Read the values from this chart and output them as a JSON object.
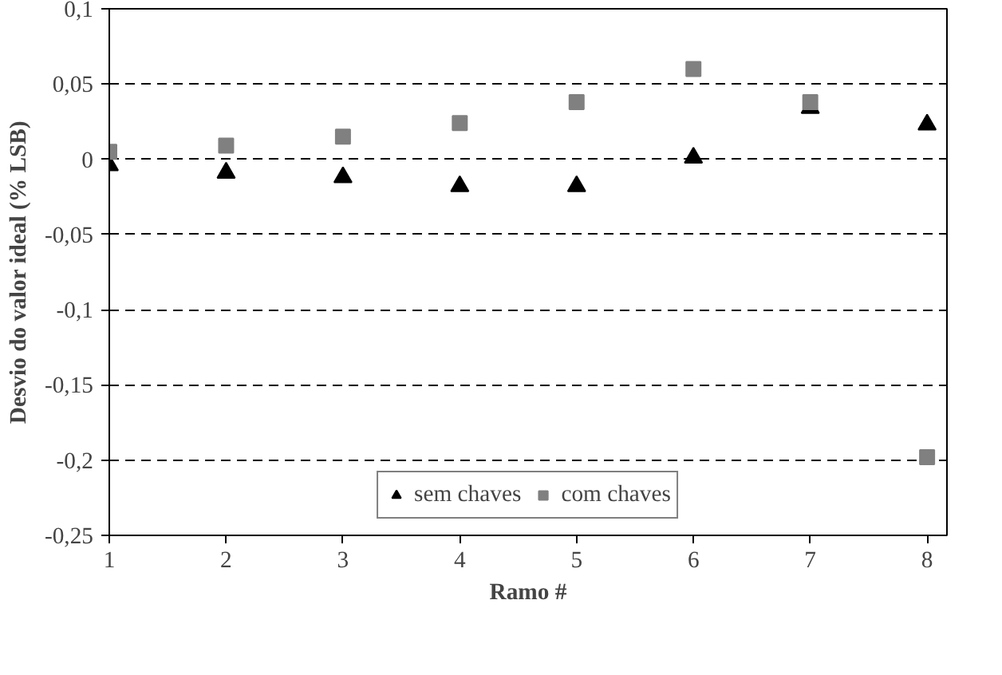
{
  "chart_data": {
    "type": "scatter",
    "xlabel": "Ramo #",
    "ylabel": "Desvio do valor ideal (% LSB)",
    "x": [
      1,
      2,
      3,
      4,
      5,
      6,
      7,
      8
    ],
    "series": [
      {
        "name": "sem chaves",
        "color": "#000000",
        "marker": "triangle",
        "values": [
          -0.004,
          -0.009,
          -0.012,
          -0.018,
          -0.018,
          0.001,
          0.034,
          0.023
        ]
      },
      {
        "name": "com chaves",
        "color": "#808080",
        "marker": "square",
        "values": [
          0.005,
          0.009,
          0.015,
          0.024,
          0.038,
          0.06,
          0.038,
          -0.198
        ]
      }
    ],
    "xlim": [
      1,
      8.17
    ],
    "xticks": [
      1,
      2,
      3,
      4,
      5,
      6,
      7,
      8
    ],
    "ylim": [
      -0.25,
      0.1
    ],
    "yticks": [
      {
        "value": -0.25,
        "label": "-0,25"
      },
      {
        "value": -0.2,
        "label": "-0,2"
      },
      {
        "value": -0.15,
        "label": "-0,15"
      },
      {
        "value": -0.1,
        "label": "-0,1"
      },
      {
        "value": -0.05,
        "label": "-0,05"
      },
      {
        "value": 0,
        "label": "0"
      },
      {
        "value": 0.05,
        "label": "0,05"
      },
      {
        "value": 0.1,
        "label": "0,1"
      }
    ],
    "grid": "y",
    "legend": "bottom"
  }
}
